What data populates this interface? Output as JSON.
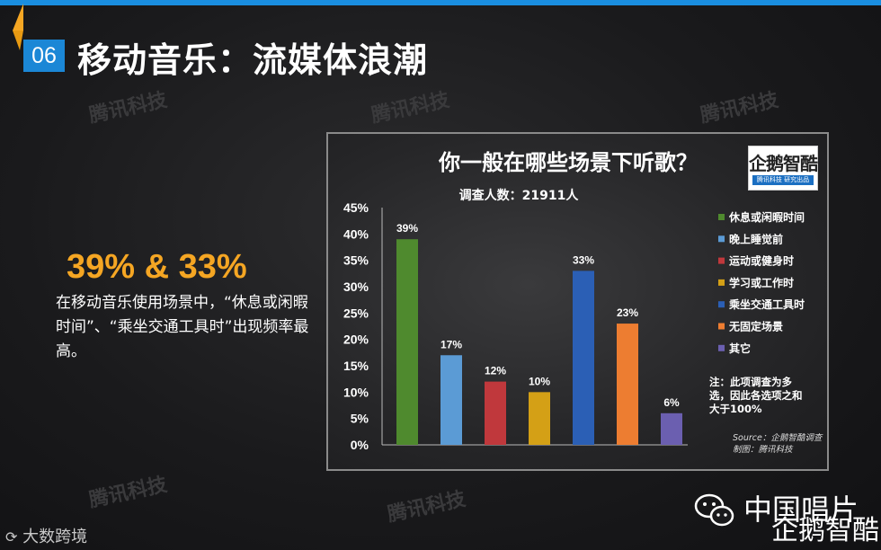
{
  "header": {
    "section_number": "06",
    "title": "移动音乐：流媒体浪潮"
  },
  "watermarks": {
    "brand": "腾讯科技"
  },
  "summary": {
    "highlight": "39% & 33%",
    "description": "在移动音乐使用场景中，“休息或闲暇时间”、“乘坐交通工具时”出现频率最高。"
  },
  "chart_data": {
    "type": "bar",
    "title": "你一般在哪些场景下听歌？",
    "subtitle": "调查人数：21911人",
    "categories": [
      "休息或闲暇时间",
      "晚上睡觉前",
      "运动或健身时",
      "学习或工作时",
      "乘坐交通工具时",
      "无固定场景",
      "其它"
    ],
    "values": [
      39,
      17,
      12,
      10,
      33,
      23,
      6
    ],
    "value_labels": [
      "39%",
      "17%",
      "12%",
      "10%",
      "33%",
      "23%",
      "6%"
    ],
    "colors": [
      "#4f8a2e",
      "#5b9bd5",
      "#c0383c",
      "#d4a016",
      "#2b5fb5",
      "#ed7d31",
      "#6b5fb0"
    ],
    "yticks": [
      "0%",
      "5%",
      "10%",
      "15%",
      "20%",
      "25%",
      "30%",
      "35%",
      "40%",
      "45%"
    ],
    "ylim": [
      0,
      45
    ],
    "legend_position": "right",
    "note": [
      "注：此项调查为多",
      "选，因此各选项之和",
      "大于100%"
    ],
    "source": [
      "Source：企鹅智酷调查",
      "制图：腾讯科技"
    ]
  },
  "logo": {
    "name": "企鹅智酷",
    "tagline": "腾讯科技 研究出品"
  },
  "footer": {
    "left_watermark": "大数跨境",
    "right_watermark_line1": "中国唱片",
    "right_watermark_line2": "企鹅智酷"
  }
}
